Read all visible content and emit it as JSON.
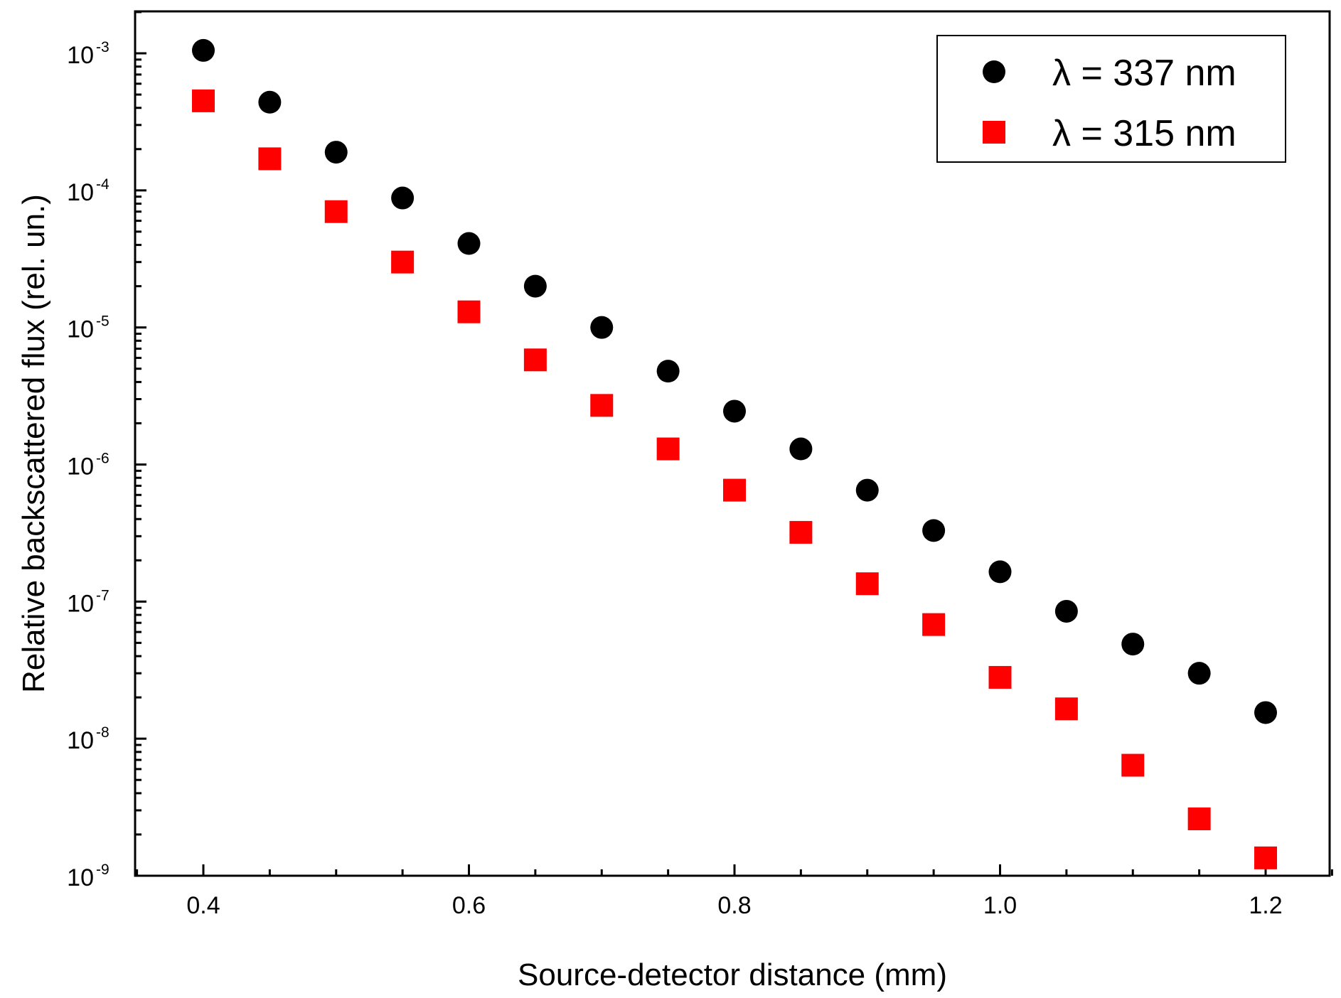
{
  "chart_data": {
    "type": "scatter",
    "title": "",
    "xlabel": "Source-detector distance (mm)",
    "ylabel": "Relative backscattered flux (rel. un.)",
    "xlim": [
      0.35,
      1.25
    ],
    "ylim": [
      1e-09,
      0.0015
    ],
    "yscale": "log",
    "legend_position": "top-right",
    "x_ticks": [
      {
        "value": 0.4,
        "label": "0.4"
      },
      {
        "value": 0.6,
        "label": "0.6"
      },
      {
        "value": 0.8,
        "label": "0.8"
      },
      {
        "value": 1.0,
        "label": "1.0"
      },
      {
        "value": 1.2,
        "label": "1.2"
      }
    ],
    "y_ticks": [
      {
        "value": 1e-09,
        "base": "10",
        "exp": "-9"
      },
      {
        "value": 1e-08,
        "base": "10",
        "exp": "-8"
      },
      {
        "value": 1e-07,
        "base": "10",
        "exp": "-7"
      },
      {
        "value": 1e-06,
        "base": "10",
        "exp": "-6"
      },
      {
        "value": 1e-05,
        "base": "10",
        "exp": "-5"
      },
      {
        "value": 0.0001,
        "base": "10",
        "exp": "-4"
      },
      {
        "value": 0.001,
        "base": "10",
        "exp": "-3"
      }
    ],
    "x": [
      0.4,
      0.45,
      0.5,
      0.55,
      0.6,
      0.65,
      0.7,
      0.75,
      0.8,
      0.85,
      0.9,
      0.95,
      1.0,
      1.05,
      1.1,
      1.15,
      1.2
    ],
    "series": [
      {
        "name": "λ = 337 nm",
        "marker": "circle",
        "color": "#000000",
        "values": [
          0.00105,
          0.00044,
          0.00019,
          8.8e-05,
          4.1e-05,
          2e-05,
          1e-05,
          4.8e-06,
          2.45e-06,
          1.3e-06,
          6.5e-07,
          3.3e-07,
          1.65e-07,
          8.5e-08,
          4.9e-08,
          3e-08,
          1.55e-08
        ]
      },
      {
        "name": "λ = 315 nm",
        "marker": "square",
        "color": "#ff0000",
        "values": [
          0.00045,
          0.00017,
          7e-05,
          3e-05,
          1.3e-05,
          5.8e-06,
          2.7e-06,
          1.3e-06,
          6.5e-07,
          3.2e-07,
          1.35e-07,
          6.8e-08,
          2.8e-08,
          1.65e-08,
          6.4e-09,
          2.6e-09,
          1.35e-09
        ]
      }
    ]
  }
}
